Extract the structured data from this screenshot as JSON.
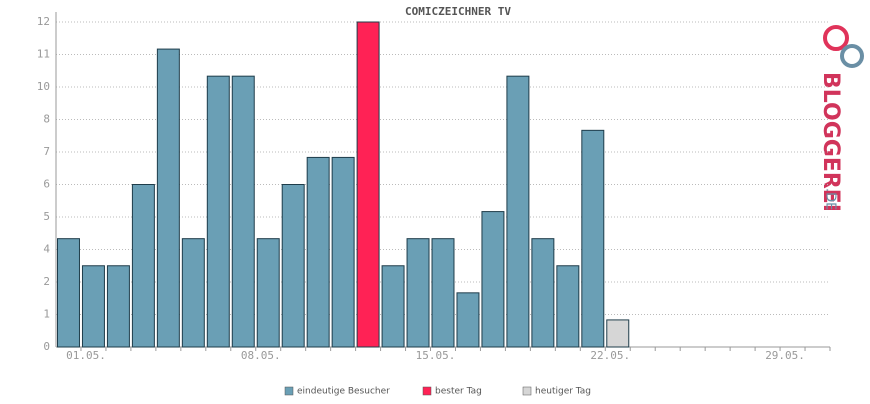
{
  "chart_data": {
    "type": "bar",
    "title": "COMICZEICHNER TV",
    "categories": [
      "01.05.",
      null,
      null,
      null,
      null,
      null,
      null,
      "08.05.",
      null,
      null,
      null,
      null,
      null,
      null,
      "15.05.",
      null,
      null,
      null,
      null,
      null,
      null,
      "22.05.",
      null,
      null,
      null,
      null,
      null,
      null,
      "29.05.",
      null,
      null
    ],
    "series": [
      {
        "name": "eindeutige Besucher",
        "color": "#6a9fb5",
        "values": [
          4,
          3,
          3,
          6,
          11,
          4,
          10,
          10,
          4,
          6,
          7,
          7,
          null,
          3,
          4,
          4,
          2,
          5,
          10,
          4,
          3,
          8,
          null,
          null,
          null,
          null,
          null,
          null,
          null,
          null,
          null
        ]
      },
      {
        "name": "bester Tag",
        "color": "#ff2255",
        "values": [
          null,
          null,
          null,
          null,
          null,
          null,
          null,
          null,
          null,
          null,
          null,
          null,
          12,
          null,
          null,
          null,
          null,
          null,
          null,
          null,
          null,
          null,
          null,
          null,
          null,
          null,
          null,
          null,
          null,
          null,
          null
        ]
      },
      {
        "name": "heutiger Tag",
        "color": "#d6d6d6",
        "values": [
          null,
          null,
          null,
          null,
          null,
          null,
          null,
          null,
          null,
          null,
          null,
          null,
          null,
          null,
          null,
          null,
          null,
          null,
          null,
          null,
          null,
          null,
          1,
          null,
          null,
          null,
          null,
          null,
          null,
          null,
          null
        ]
      }
    ],
    "ylim": [
      0,
      12
    ],
    "yticks": [
      0,
      {
        "value": 1.2,
        "label": "1"
      },
      {
        "value": 2.4,
        "label": "2"
      },
      {
        "value": 3.6,
        "label": "4"
      },
      {
        "value": 4.8,
        "label": "5"
      },
      6,
      {
        "value": 7.2,
        "label": "7"
      },
      {
        "value": 8.4,
        "label": "8"
      },
      {
        "value": 9.6,
        "label": "10"
      },
      {
        "value": 10.8,
        "label": "11"
      },
      12
    ],
    "grid": true,
    "legend": "bottom",
    "logo": {
      "main": "BLOGGEREI",
      "suffix": ".DE"
    }
  }
}
